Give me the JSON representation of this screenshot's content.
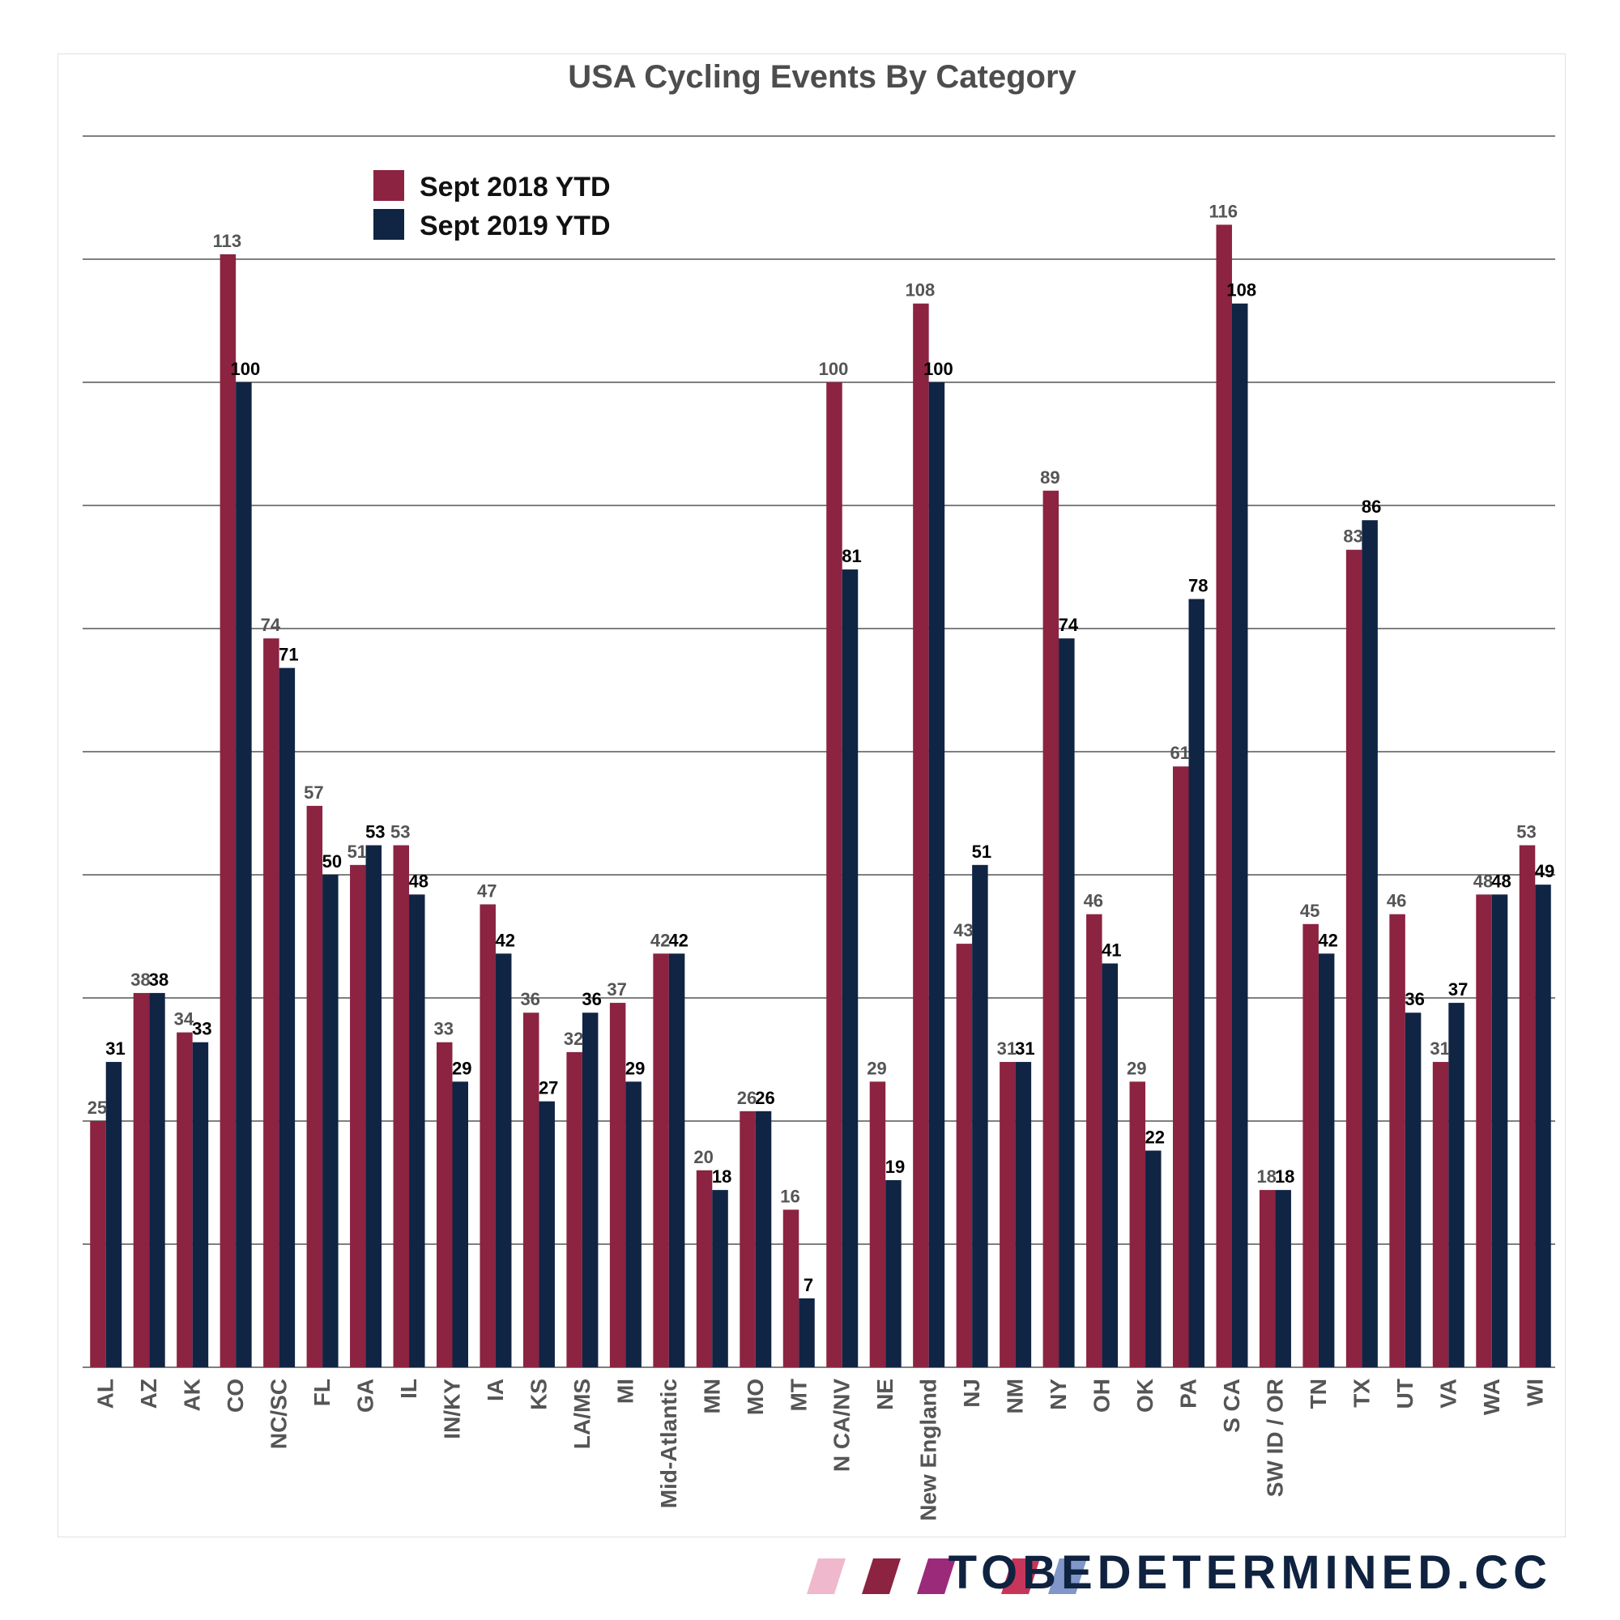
{
  "chart_data": {
    "type": "bar",
    "title": "USA Cycling Events By Category",
    "xlabel": "",
    "ylabel": "",
    "ylim": [
      0,
      125
    ],
    "grid": true,
    "legend_position": "top-left",
    "categories": [
      "AL",
      "AZ",
      "AK",
      "CO",
      "NC/SC",
      "FL",
      "GA",
      "IL",
      "IN/KY",
      "IA",
      "KS",
      "LA/MS",
      "MI",
      "Mid-Atlantic",
      "MN",
      "MO",
      "MT",
      "N CA/NV",
      "NE",
      "New England",
      "NJ",
      "NM",
      "NY",
      "OH",
      "OK",
      "PA",
      "S CA",
      "SW ID / OR",
      "TN",
      "TX",
      "UT",
      "VA",
      "WA",
      "WI"
    ],
    "series": [
      {
        "name": "Sept 2018 YTD",
        "color": "#8b2341",
        "values": [
          25,
          38,
          34,
          113,
          74,
          57,
          51,
          53,
          33,
          47,
          36,
          32,
          37,
          42,
          20,
          26,
          16,
          100,
          29,
          108,
          43,
          31,
          89,
          46,
          29,
          61,
          116,
          18,
          45,
          83,
          46,
          31,
          48,
          53
        ]
      },
      {
        "name": "Sept 2019 YTD",
        "color": "#102444",
        "values": [
          31,
          38,
          33,
          100,
          71,
          50,
          53,
          48,
          29,
          42,
          27,
          36,
          29,
          42,
          18,
          26,
          7,
          81,
          19,
          100,
          51,
          31,
          74,
          41,
          22,
          78,
          108,
          18,
          42,
          86,
          36,
          37,
          48,
          49
        ]
      }
    ]
  },
  "brand": {
    "text": "TOBEDETERMINED.CC",
    "stripe_colors": [
      "#f0b8cc",
      "#8b2341",
      "#9c2a7a",
      "#c8355a",
      "#8197c9"
    ]
  }
}
